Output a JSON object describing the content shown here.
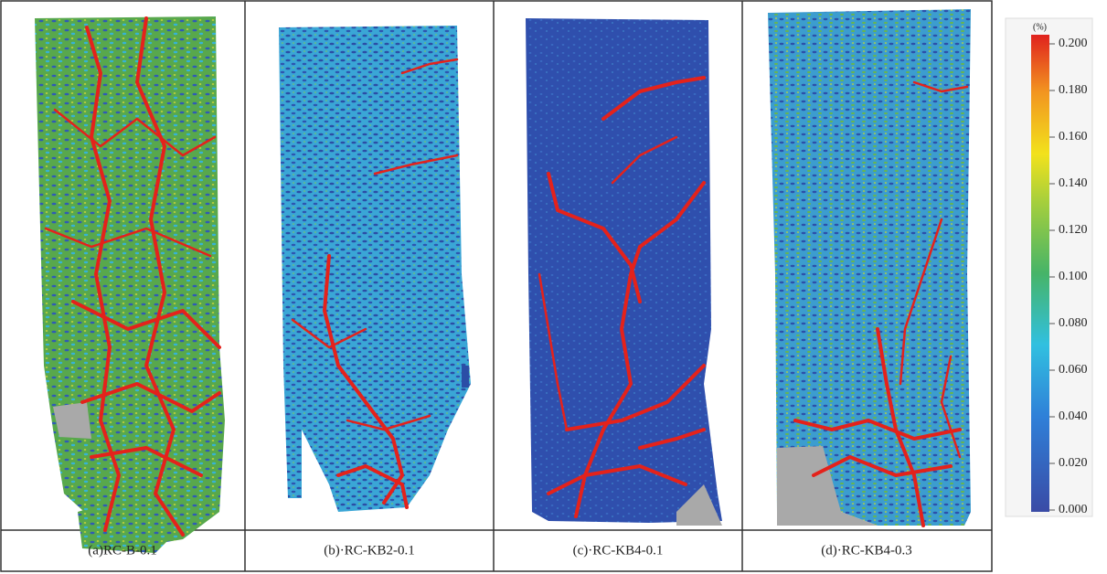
{
  "captions": [
    "(a)RC-B-0.1",
    "(b)·RC-KB2-0.1",
    "(c)·RC-KB4-0.1",
    "(d)·RC-KB4-0.3"
  ],
  "colorbar": {
    "unit": "(%)",
    "lim": [
      0,
      0.2
    ],
    "ticks": [
      {
        "value": 0.2,
        "label": "0.200"
      },
      {
        "value": 0.18,
        "label": "0.180"
      },
      {
        "value": 0.16,
        "label": "0.160"
      },
      {
        "value": 0.14,
        "label": "0.140"
      },
      {
        "value": 0.12,
        "label": "0.120"
      },
      {
        "value": 0.1,
        "label": "0.100"
      },
      {
        "value": 0.08,
        "label": "0.080"
      },
      {
        "value": 0.06,
        "label": "0.060"
      },
      {
        "value": 0.04,
        "label": "0.040"
      },
      {
        "value": 0.02,
        "label": "0.020"
      },
      {
        "value": 0,
        "label": "0.000"
      }
    ]
  }
}
